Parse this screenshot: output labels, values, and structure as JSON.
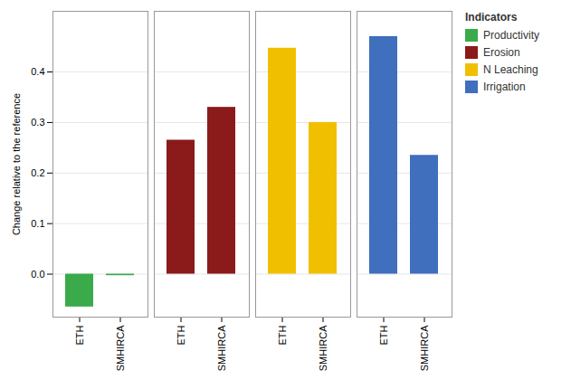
{
  "chart_data": {
    "type": "bar",
    "ylabel": "Change relative to the reference",
    "legend_title": "Indicators",
    "categories": [
      "ETH",
      "SMHIRCA"
    ],
    "series": [
      {
        "name": "Productivity",
        "color": "#3aaa4a",
        "values": [
          -0.065,
          -0.003
        ]
      },
      {
        "name": "Erosion",
        "color": "#8b1a1a",
        "values": [
          0.265,
          0.33
        ]
      },
      {
        "name": "N Leaching",
        "color": "#f0c000",
        "values": [
          0.447,
          0.3
        ]
      },
      {
        "name": "Irrigation",
        "color": "#3f6fbd",
        "values": [
          0.47,
          0.235
        ]
      }
    ],
    "ylim": [
      -0.085,
      0.52
    ],
    "yticks": [
      {
        "value": 0.0,
        "label": "0.0"
      },
      {
        "value": 0.1,
        "label": "0.1"
      },
      {
        "value": 0.2,
        "label": "0.2"
      },
      {
        "value": 0.3,
        "label": "0.3"
      },
      {
        "value": 0.4,
        "label": "0.4"
      }
    ],
    "grid": true,
    "legend": "right"
  }
}
